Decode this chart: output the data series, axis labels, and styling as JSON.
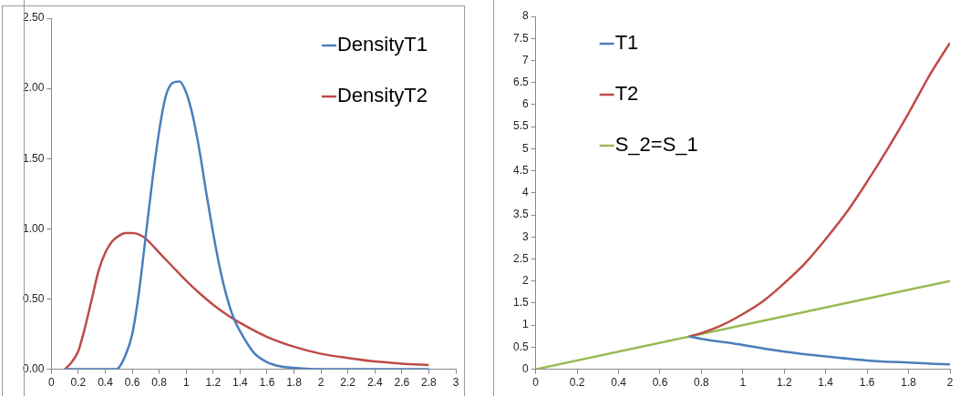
{
  "chart_data": [
    {
      "type": "line",
      "legend": "top right",
      "xlim": [
        0,
        3
      ],
      "xticks": [
        0,
        0.2,
        0.4,
        0.6,
        0.8,
        1,
        1.2,
        1.4,
        1.6,
        1.8,
        2,
        2.2,
        2.4,
        2.6,
        2.8,
        3
      ],
      "ylim": [
        0,
        2.5
      ],
      "yticks": [
        {
          "value": 0,
          "label": "0.00"
        },
        {
          "value": 0.5,
          "label": "0.50"
        },
        {
          "value": 1,
          "label": "1.00"
        },
        {
          "value": 1.5,
          "label": "1.50"
        },
        {
          "value": 2,
          "label": "2.00"
        },
        {
          "value": 2.5,
          "label": "2.50"
        }
      ],
      "series": [
        {
          "name": "DensityT1",
          "color": "#4a7ebb",
          "x": [
            0.1,
            0.2,
            0.3,
            0.4,
            0.48,
            0.55,
            0.6,
            0.65,
            0.7,
            0.75,
            0.8,
            0.85,
            0.9,
            0.95,
            1.0,
            1.05,
            1.1,
            1.15,
            1.2,
            1.25,
            1.3,
            1.35,
            1.4,
            1.5,
            1.6,
            1.7,
            1.8,
            2.0,
            2.4,
            2.8
          ],
          "values": [
            0,
            0,
            0,
            0,
            0,
            0.1,
            0.25,
            0.55,
            0.95,
            1.35,
            1.7,
            1.95,
            2.04,
            2.05,
            1.97,
            1.8,
            1.55,
            1.25,
            0.97,
            0.72,
            0.52,
            0.37,
            0.27,
            0.12,
            0.05,
            0.02,
            0.01,
            0,
            0,
            0
          ]
        },
        {
          "name": "DensityT2",
          "color": "#be4b48",
          "x": [
            0.1,
            0.15,
            0.2,
            0.25,
            0.3,
            0.35,
            0.4,
            0.45,
            0.5,
            0.55,
            0.6,
            0.65,
            0.7,
            0.8,
            0.9,
            1.0,
            1.1,
            1.2,
            1.3,
            1.4,
            1.6,
            1.8,
            2.0,
            2.2,
            2.4,
            2.6,
            2.8
          ],
          "values": [
            0,
            0.05,
            0.13,
            0.3,
            0.5,
            0.7,
            0.83,
            0.91,
            0.95,
            0.97,
            0.97,
            0.96,
            0.93,
            0.83,
            0.73,
            0.63,
            0.54,
            0.46,
            0.39,
            0.33,
            0.23,
            0.16,
            0.11,
            0.08,
            0.055,
            0.04,
            0.03
          ]
        }
      ]
    },
    {
      "type": "line",
      "legend": "top left",
      "xlim": [
        0,
        2
      ],
      "xticks": [
        0,
        0.2,
        0.4,
        0.6,
        0.8,
        1,
        1.2,
        1.4,
        1.6,
        1.8,
        2
      ],
      "ylim": [
        0,
        8
      ],
      "yticks": [
        0,
        0.5,
        1,
        1.5,
        2,
        2.5,
        3,
        3.5,
        4,
        4.5,
        5,
        5.5,
        6,
        6.5,
        7,
        7.5,
        8
      ],
      "series": [
        {
          "name": "T1",
          "color": "#4a7ebb",
          "x": [
            0.74,
            0.8,
            1.0,
            1.2,
            1.4,
            1.6,
            1.8,
            2.0
          ],
          "values": [
            0.74,
            0.69,
            0.55,
            0.4,
            0.29,
            0.2,
            0.15,
            0.11
          ]
        },
        {
          "name": "T2",
          "color": "#be4b48",
          "x": [
            0.74,
            0.8,
            0.9,
            1.0,
            1.1,
            1.2,
            1.3,
            1.4,
            1.5,
            1.6,
            1.7,
            1.8,
            1.9,
            2.0
          ],
          "values": [
            0.74,
            0.82,
            1.0,
            1.25,
            1.55,
            1.95,
            2.4,
            2.95,
            3.55,
            4.25,
            5.0,
            5.8,
            6.65,
            7.4
          ]
        },
        {
          "name": "S_2=S_1",
          "color": "#98b954",
          "x": [
            0,
            2
          ],
          "values": [
            0,
            2
          ]
        }
      ]
    }
  ]
}
